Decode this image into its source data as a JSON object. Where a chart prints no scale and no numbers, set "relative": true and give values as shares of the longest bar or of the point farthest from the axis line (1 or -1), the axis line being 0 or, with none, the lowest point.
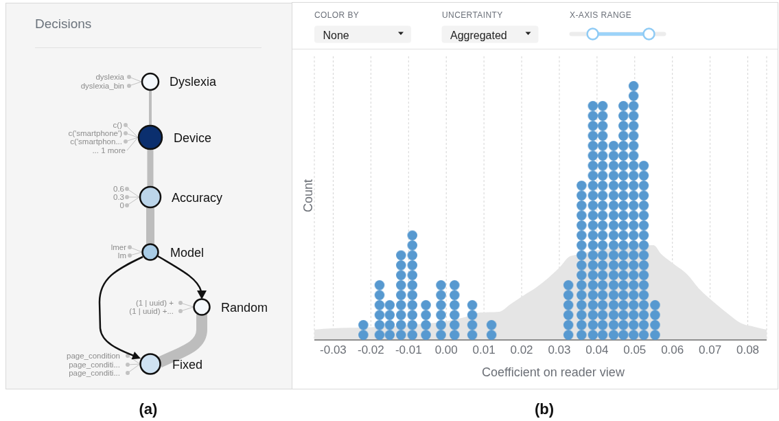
{
  "chart_data": [
    {
      "type": "other",
      "title": "Decisions",
      "annotations": [
        "dyslexia",
        "dyslexia_bin",
        "Dyslexia",
        "c()",
        "c('smartphone')",
        "c('smartphon...",
        "... 1 more",
        "Device",
        "0.6",
        "0.3",
        "0",
        "Accuracy",
        "lmer",
        "lm",
        "Model",
        "(1 | uuid) +",
        "(1 | uuid) +...",
        "Random",
        "page_condition",
        "page_conditi...",
        "page_conditi...",
        "Fixed",
        "(a)"
      ]
    },
    {
      "type": "other",
      "annotations": [
        "COLOR BY",
        "None",
        "UNCERTAINTY",
        "Aggregated",
        "X-AXIS RANGE"
      ]
    },
    {
      "type": "bar",
      "xlabel": "Coefficient on reader view",
      "ylabel": "Count",
      "relative": true,
      "grid": "x",
      "xlim": [
        -0.035,
        0.085
      ],
      "xticks": [
        -0.03,
        -0.02,
        -0.01,
        {
          "value": 0,
          "label": "0.00"
        },
        0.01,
        0.02,
        0.03,
        0.04,
        0.05,
        0.06,
        0.07,
        0.08
      ],
      "series": [
        {
          "type": "area",
          "color": "#e5e5e5",
          "x": [
            -0.035,
            -0.03,
            -0.023,
            -0.02,
            -0.013,
            -0.007,
            0.0,
            0.005,
            0.009,
            0.014,
            0.017,
            0.02,
            0.024,
            0.027,
            0.03,
            0.033,
            0.037,
            0.04,
            0.044,
            0.048,
            0.052,
            0.055,
            0.057,
            0.06,
            0.064,
            0.067,
            0.071,
            0.075,
            0.078,
            0.082,
            0.085
          ],
          "values": [
            0.04,
            0.045,
            0.048,
            0.049,
            null,
            0.061,
            0.072,
            0.088,
            0.106,
            0.109,
            0.138,
            0.167,
            0.204,
            0.239,
            0.279,
            0.324,
            null,
            null,
            null,
            null,
            null,
            0.366,
            0.332,
            0.297,
            0.252,
            0.199,
            0.146,
            0.098,
            0.066,
            0.05,
            0.04
          ]
        },
        {
          "type": "bar",
          "color": "#5799d0",
          "x": [
            -0.022,
            -0.0177,
            -0.015,
            -0.012,
            -0.009,
            -0.0054,
            -0.0014,
            0.0022,
            0.0069,
            0.012,
            0.0324,
            0.0359,
            0.0389,
            0.0415,
            0.0444,
            0.047,
            0.0497,
            0.0524,
            0.0554
          ],
          "values": [
            0.077,
            0.231,
            0.154,
            0.346,
            0.423,
            0.154,
            0.231,
            0.231,
            0.154,
            0.077,
            0.231,
            0.615,
            0.923,
            0.923,
            0.769,
            0.923,
            1,
            0.692,
            0.154
          ]
        }
      ],
      "annotations": [
        "(b)"
      ]
    }
  ]
}
